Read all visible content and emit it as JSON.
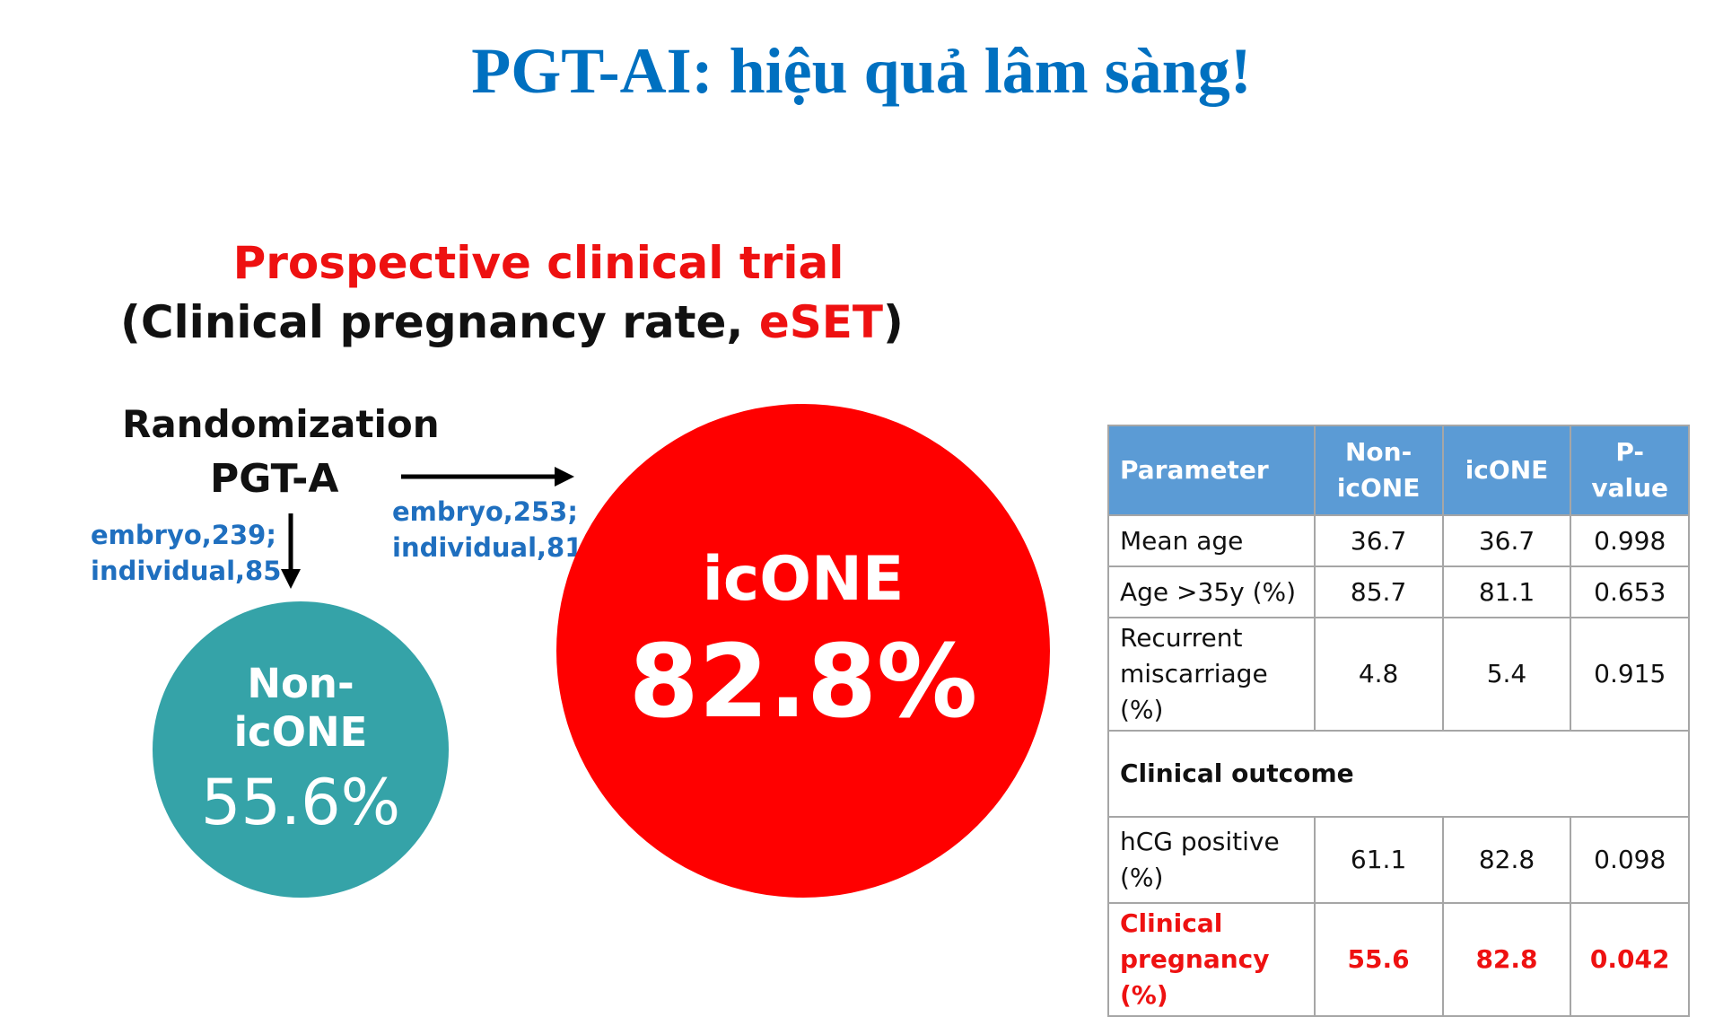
{
  "title": "PGT-AI: hiệu quả lâm sàng!",
  "trial": {
    "heading": "Prospective clinical trial",
    "subheading": {
      "before": "(Clinical pregnancy rate, ",
      "highlight": "eSET",
      "after": ")"
    }
  },
  "flow": {
    "randomization": "Randomization",
    "method": "PGT-A",
    "non_icone_counts": [
      "embryo,239;",
      "individual,85"
    ],
    "icone_counts": [
      "embryo,253;",
      "individual,81"
    ]
  },
  "circles": {
    "non_icone": {
      "label": [
        "Non-",
        "icONE"
      ],
      "rate": "55.6%"
    },
    "icone": {
      "label": "icONE",
      "rate": "82.8%"
    }
  },
  "table": {
    "header": [
      "Parameter",
      "Non-icONE",
      "icONE",
      "P-value"
    ],
    "rows": [
      [
        "Mean age",
        "36.7",
        "36.7",
        "0.998"
      ],
      [
        "Age >35y (%)",
        "85.7",
        "81.1",
        "0.653"
      ],
      [
        "Recurrent miscarriage (%)",
        "4.8",
        "5.4",
        "0.915"
      ],
      [
        "Clinical outcome"
      ],
      [
        "hCG positive (%)",
        "61.1",
        "82.8",
        "0.098"
      ],
      [
        "Clinical pregnancy (%)",
        "55.6",
        "82.8",
        "0.042"
      ]
    ]
  }
}
